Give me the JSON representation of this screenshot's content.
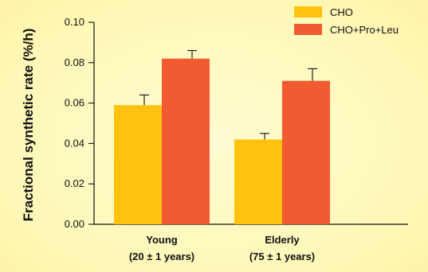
{
  "chart_data": {
    "type": "bar",
    "ylabel": "Fractional synthetic rate (%/h)",
    "ylim": [
      0,
      0.1
    ],
    "yticks": [
      "0.00",
      "0.02",
      "0.04",
      "0.06",
      "0.08",
      "0.10"
    ],
    "categories": [
      [
        "Young",
        "(20 ± 1 years)"
      ],
      [
        "Elderly",
        "(75 ± 1 years)"
      ]
    ],
    "series": [
      {
        "name": "CHO",
        "color": "#ffc20f",
        "values": [
          0.059,
          0.042
        ],
        "errors": [
          0.005,
          0.003
        ]
      },
      {
        "name": "CHO+Pro+Leu",
        "color": "#f25a32",
        "values": [
          0.082,
          0.071
        ],
        "errors": [
          0.004,
          0.006
        ]
      }
    ],
    "legend_position": "top-right",
    "grid": false
  }
}
